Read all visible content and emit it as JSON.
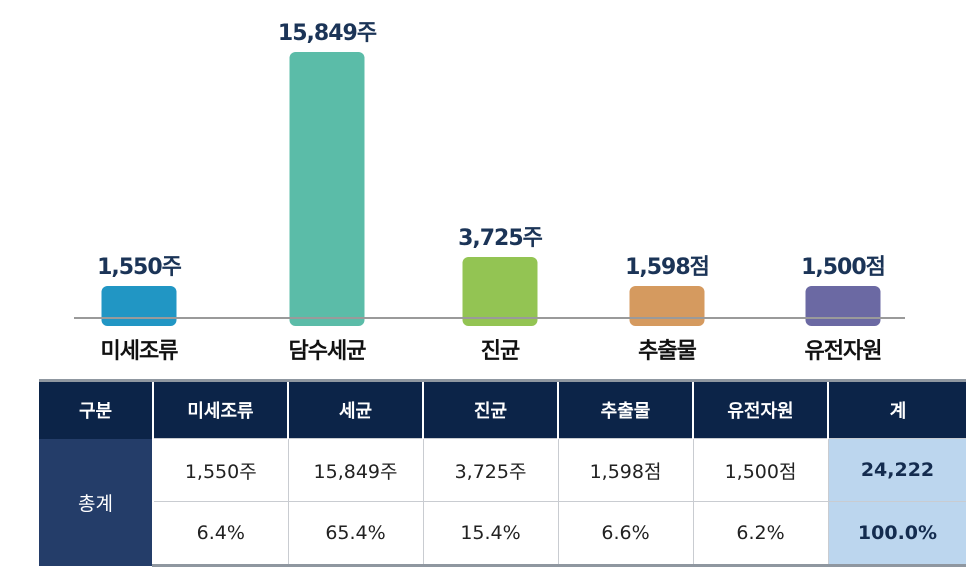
{
  "chart_data": {
    "type": "bar",
    "categories": [
      "미세조류",
      "담수세균",
      "진균",
      "추출물",
      "유전자원"
    ],
    "values": [
      1550,
      15849,
      3725,
      1598,
      1500
    ],
    "value_labels": [
      "1,550주",
      "15,849주",
      "3,725주",
      "1,598점",
      "1,500점"
    ],
    "colors": [
      "#2196c4",
      "#5bbca8",
      "#93c453",
      "#d59a5f",
      "#6b69a3"
    ],
    "xlabel": "",
    "ylabel": ""
  },
  "table": {
    "headers": [
      "구분",
      "미세조류",
      "세균",
      "진균",
      "추출물",
      "유전자원",
      "계"
    ],
    "row_header": "총계",
    "counts": [
      "1,550주",
      "15,849주",
      "3,725주",
      "1,598점",
      "1,500점",
      "24,222"
    ],
    "percents": [
      "6.4%",
      "65.4%",
      "15.4%",
      "6.6%",
      "6.2%",
      "100.0%"
    ]
  }
}
